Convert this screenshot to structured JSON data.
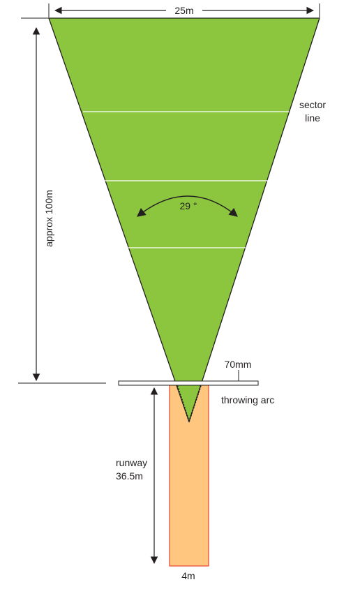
{
  "diagram": {
    "top_width_label": "25m",
    "length_label": "approx 100m",
    "angle_label": "29 °",
    "sector_line_label": [
      "sector",
      "line"
    ],
    "arc_thickness_label": "70mm",
    "throwing_arc_label": "throwing arc",
    "runway_label": [
      "runway",
      "36.5m"
    ],
    "runway_width_label": "4m",
    "colors": {
      "sector_fill": "#8cc63f",
      "runway_fill": "#ffc680",
      "runway_border": "#e8432a",
      "lines": "#231f20",
      "distance_arcs": "#ffffff"
    }
  }
}
